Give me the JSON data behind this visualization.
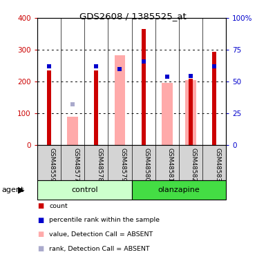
{
  "title": "GDS2608 / 1385525_at",
  "samples": [
    "GSM48559",
    "GSM48577",
    "GSM48578",
    "GSM48579",
    "GSM48580",
    "GSM48581",
    "GSM48582",
    "GSM48583"
  ],
  "red_bars": [
    235,
    0,
    235,
    0,
    365,
    0,
    210,
    293
  ],
  "blue_squares_right": [
    62,
    0,
    62,
    60,
    66,
    54,
    54.5,
    62
  ],
  "pink_bars": [
    0,
    90,
    0,
    282,
    0,
    197,
    205,
    0
  ],
  "light_blue_squares_right": [
    0,
    32,
    0,
    60,
    0,
    54,
    0,
    0
  ],
  "left_ylim": [
    0,
    400
  ],
  "right_ylim": [
    0,
    100
  ],
  "left_yticks": [
    0,
    100,
    200,
    300,
    400
  ],
  "right_yticks": [
    0,
    25,
    50,
    75,
    100
  ],
  "left_yticklabels": [
    "0",
    "100",
    "200",
    "300",
    "400"
  ],
  "right_yticklabels": [
    "0",
    "25",
    "50",
    "75",
    "100%"
  ],
  "red_color": "#cc0000",
  "blue_color": "#0000cc",
  "pink_color": "#ffaaaa",
  "light_blue_color": "#aaaacc",
  "control_bg": "#ccffcc",
  "olanzapine_bg": "#44dd44",
  "sample_bg": "#d4d4d4",
  "legend_labels": [
    "count",
    "percentile rank within the sample",
    "value, Detection Call = ABSENT",
    "rank, Detection Call = ABSENT"
  ],
  "legend_colors": [
    "#cc0000",
    "#0000cc",
    "#ffaaaa",
    "#aaaacc"
  ]
}
